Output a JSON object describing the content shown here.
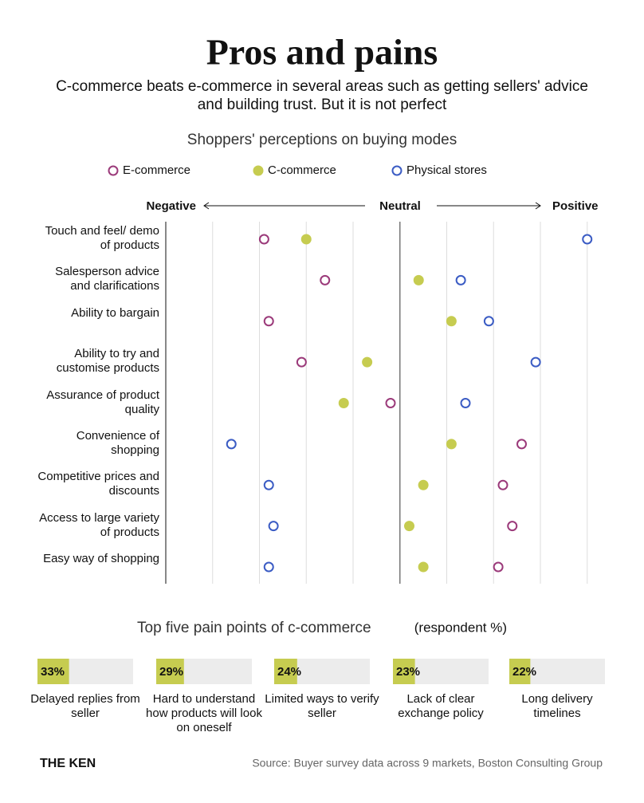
{
  "header": {
    "title": "Pros and pains",
    "subtitle": "C-commerce beats e-commerce in several areas such as getting sellers' advice and building trust. But it is not perfect"
  },
  "chart_data": [
    {
      "type": "dot",
      "title": "Shoppers' perceptions on buying modes",
      "x_axis_labels": {
        "left": "Negative",
        "center": "Neutral",
        "right": "Positive"
      },
      "categories": [
        "Touch and feel/ demo of products",
        "Salesperson advice and clarifications",
        "Ability to bargain",
        "Ability to try and customise products",
        "Assurance of product quality",
        "Convenience of shopping",
        "Competitive prices and discounts",
        "Access to large variety of products",
        "Easy way of shopping"
      ],
      "series": [
        {
          "name": "E-commerce",
          "color": "#9b3a7a",
          "filled": false,
          "values": [
            -2.9,
            -1.6,
            -2.8,
            -2.1,
            -0.2,
            2.6,
            2.2,
            2.4,
            2.1
          ]
        },
        {
          "name": "C-commerce",
          "color": "#c6cc50",
          "filled": true,
          "values": [
            -2.0,
            0.4,
            1.1,
            -0.7,
            -1.2,
            1.1,
            0.5,
            0.2,
            0.5
          ]
        },
        {
          "name": "Physical stores",
          "color": "#3b5cc4",
          "filled": false,
          "values": [
            4.0,
            1.3,
            1.9,
            2.9,
            1.4,
            -3.6,
            -2.8,
            -2.7,
            -2.8
          ]
        }
      ],
      "xlim": [
        -5,
        4
      ],
      "xticks": [
        -4,
        -3,
        -2,
        -1,
        0,
        1,
        2,
        3,
        4
      ],
      "grid": true
    },
    {
      "type": "progress",
      "title": "Top five pain points of c-commerce",
      "unit_note": "(respondent %)",
      "categories": [
        "Delayed replies from seller",
        "Hard to understand how products will look on oneself",
        "Limited ways to verify seller",
        "Lack of clear exchange policy",
        "Long delivery timelines"
      ],
      "values": [
        33,
        29,
        24,
        23,
        22
      ],
      "value_labels": [
        "33%",
        "29%",
        "24%",
        "23%",
        "22%"
      ],
      "xlim": [
        0,
        100
      ],
      "color": "#c6cc50",
      "track_color": "#ececec"
    }
  ],
  "footer": {
    "brand": "THE KEN",
    "source": "Source: Buyer survey data across 9 markets, Boston Consulting Group"
  }
}
